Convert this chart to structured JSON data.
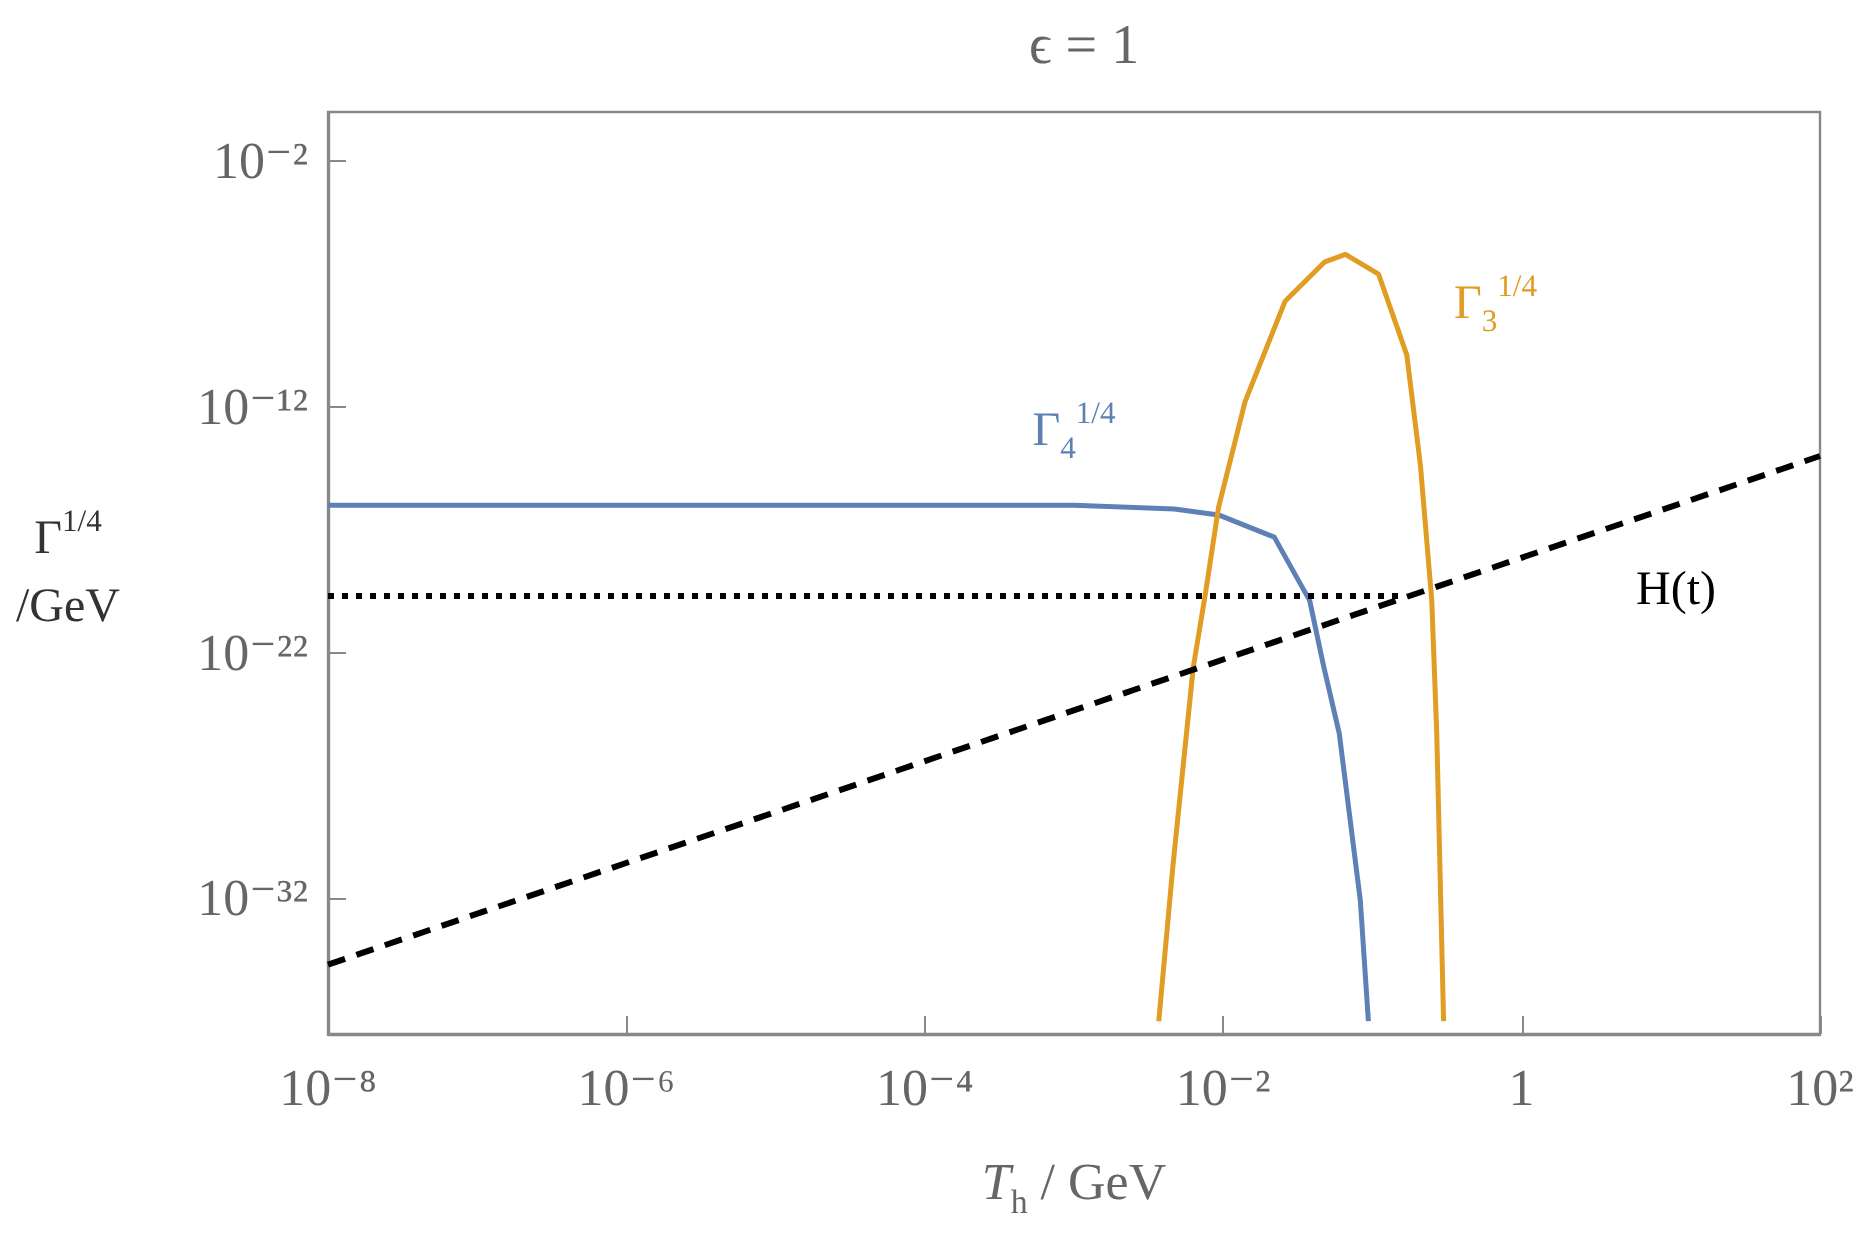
{
  "chart_data": {
    "type": "line",
    "title": "ϵ = 1",
    "xlabel": "T$_{h}$ / GeV",
    "ylabel": "Γ$^{1/4}$\n/GeV",
    "log": "xy",
    "grid": false,
    "legend": false,
    "marker": "none",
    "xlim": [
      1e-08,
      100
    ],
    "xticks": [
      {
        "value": 1e-08,
        "label": "10⁻⁸"
      },
      {
        "value": 1e-06,
        "label": "10⁻⁶"
      },
      {
        "value": 0.0001,
        "label": "10⁻⁴"
      },
      {
        "value": 0.01,
        "label": "10⁻²"
      },
      1,
      {
        "value": 100,
        "label": "10²"
      }
    ],
    "ylim": [
      3e-38,
      1
    ],
    "yticks": [
      {
        "value": 1e-32,
        "label": "10⁻³²"
      },
      {
        "value": 1e-22,
        "label": "10⁻²²"
      },
      {
        "value": 1e-12,
        "label": "10⁻¹²"
      },
      {
        "value": 0.01,
        "label": "10⁻²"
      }
    ],
    "series": [
      {
        "name": "Γ$_{4}$$^{1/4}$",
        "color": "#5e81b5",
        "line_style": "solid",
        "x": [
          1e-08,
          1e-05,
          0.001,
          0.0047,
          0.0093,
          0.022,
          0.038,
          0.047,
          0.06,
          0.083,
          0.094
        ],
        "values": [
          1e-16,
          1e-16,
          1e-16,
          7e-17,
          4e-17,
          5e-18,
          1.3e-20,
          3e-23,
          5e-26,
          8e-33,
          1e-37
        ]
      },
      {
        "name": "Γ$_{3}$$^{1/4}$",
        "color": "#e19c24",
        "line_style": "solid",
        "x": [
          0.0037,
          0.0046,
          0.0063,
          0.0076,
          0.0093,
          0.014,
          0.026,
          0.048,
          0.066,
          0.11,
          0.17,
          0.21,
          0.25,
          0.27,
          0.3
        ],
        "values": [
          1e-37,
          2e-31,
          2.5e-23,
          2.5e-20,
          8e-17,
          1.6e-12,
          2e-08,
          8e-07,
          1.6e-06,
          2.5e-07,
          1.3e-10,
          4e-15,
          1.3e-20,
          5e-26,
          1e-37
        ]
      },
      {
        "name": "H(t)",
        "color": "#000000",
        "line_style": "dashed",
        "x": [
          1e-08,
          100
        ],
        "values": [
          2e-35,
          1e-14
        ]
      },
      {
        "color": "#000000",
        "line_style": "dotted",
        "x": [
          1e-08,
          0.15
        ],
        "values": [
          2e-20,
          2e-20
        ]
      }
    ]
  }
}
